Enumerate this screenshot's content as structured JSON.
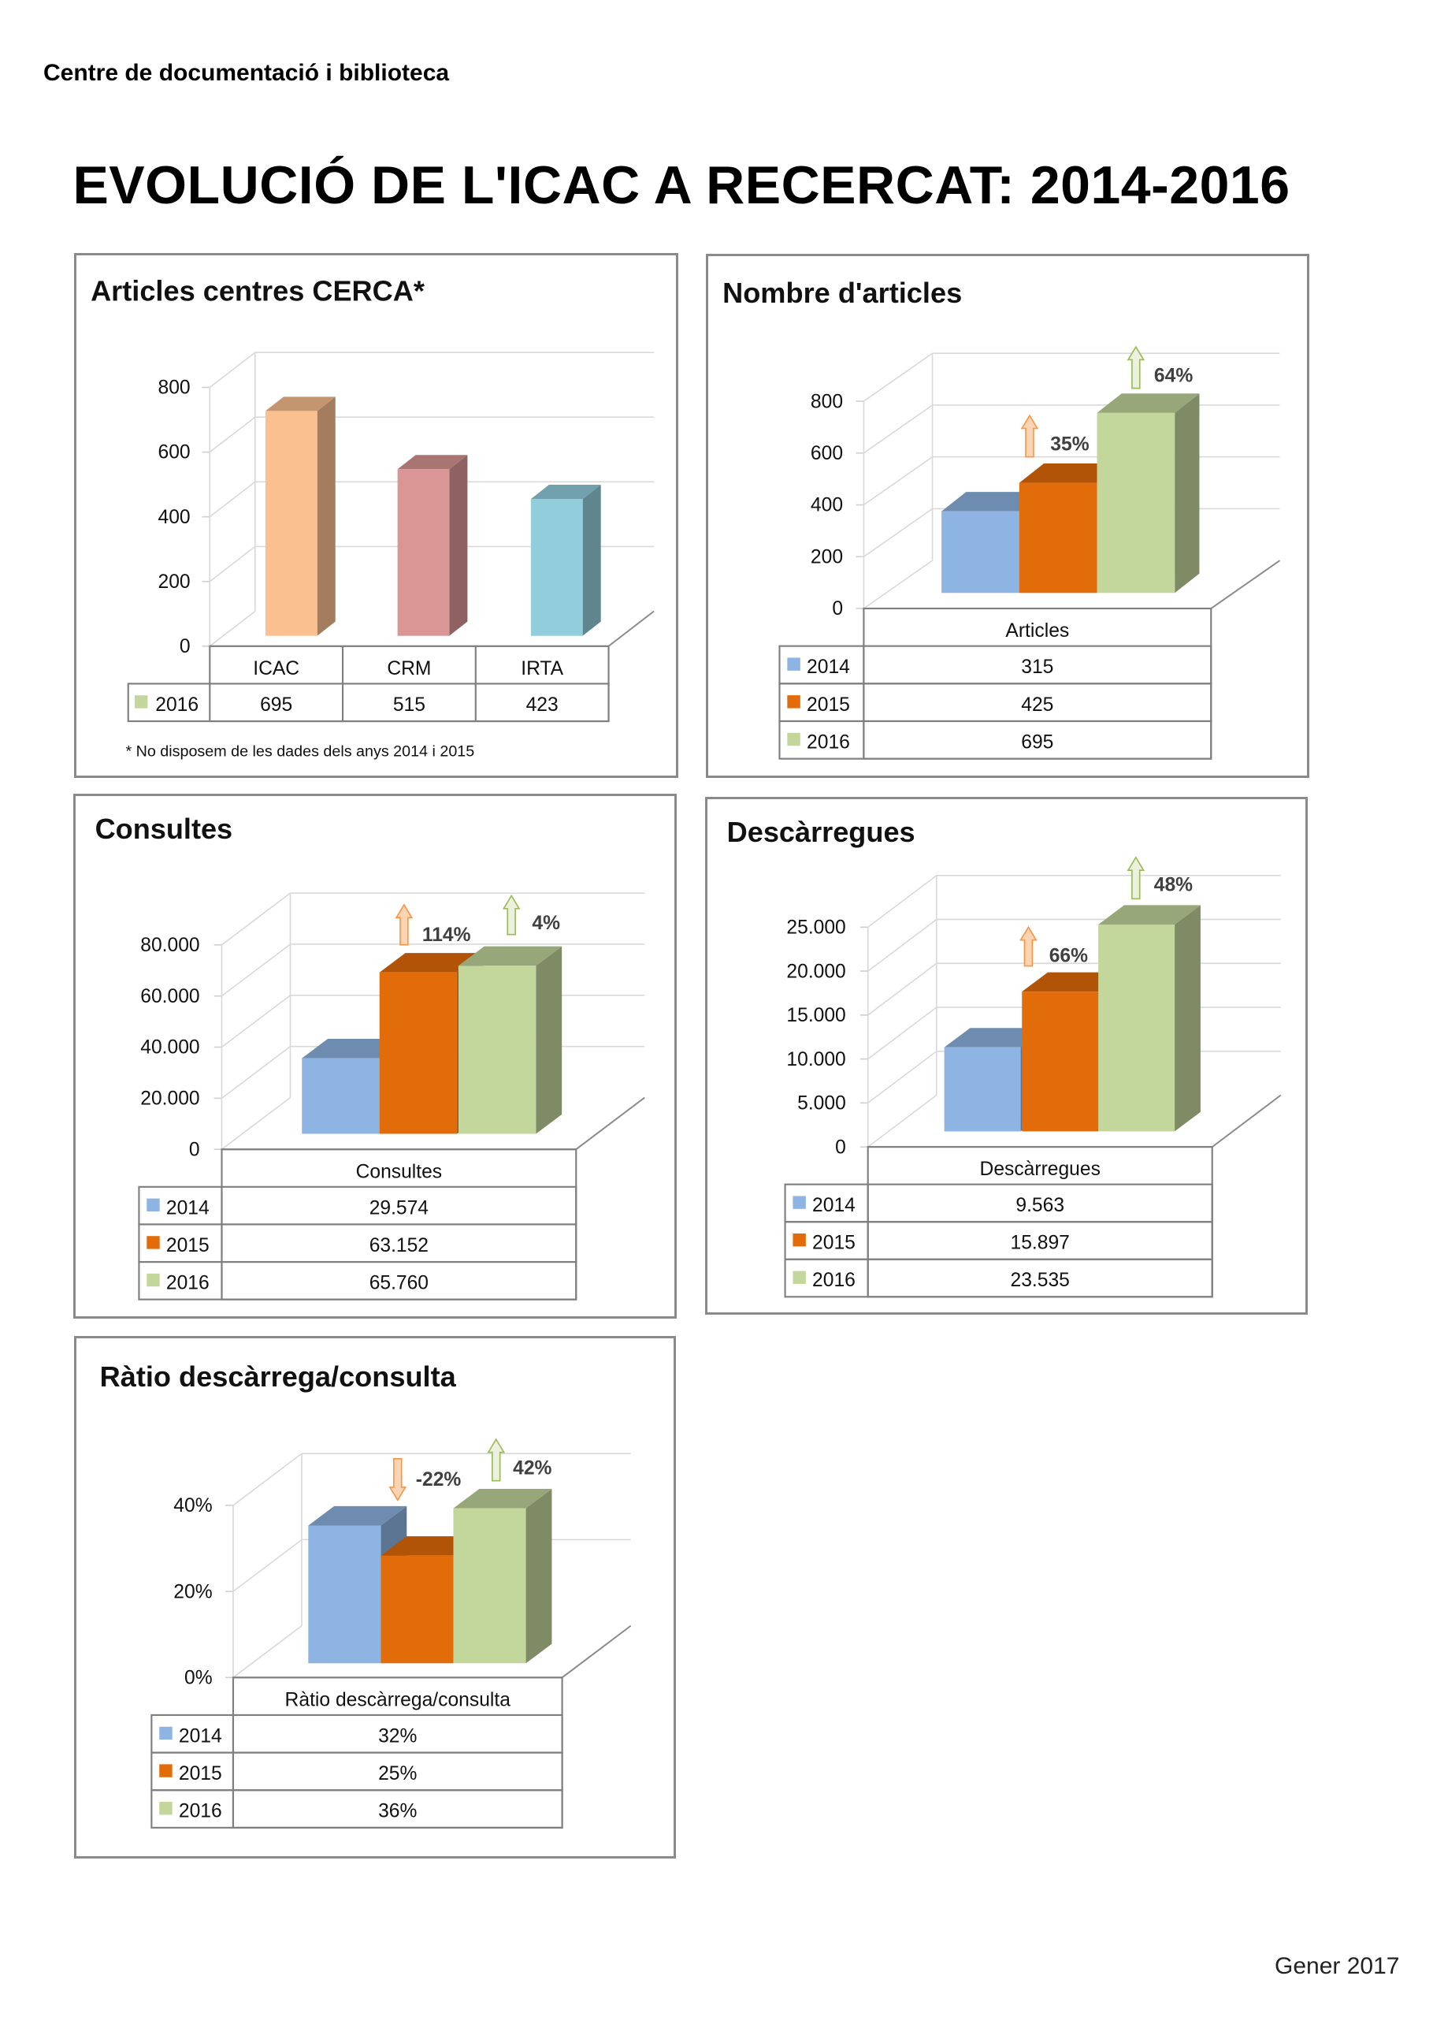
{
  "header": {
    "organization": "Centre de documentació i biblioteca",
    "title": "EVOLUCIÓ DE L'ICAC A RECERCAT: 2014-2016",
    "footer_date": "Gener 2017"
  },
  "colors": {
    "y2014": "#8DB4E2",
    "y2015": "#E36C0A",
    "y2016": "#C3D69B",
    "icac": "#FAC090",
    "crm": "#D99694",
    "irta": "#92CDDC",
    "arrow_up_orange": "#F79646",
    "arrow_up_green": "#9BBB59"
  },
  "chart_data": [
    {
      "id": "articles-cerca",
      "type": "bar",
      "title": "Articles centres CERCA*",
      "categories": [
        "ICAC",
        "CRM",
        "IRTA"
      ],
      "series": [
        {
          "name": "2016",
          "values": [
            695,
            515,
            423
          ]
        }
      ],
      "value_labels": [
        "695",
        "515",
        "423"
      ],
      "ylim": [
        0,
        800
      ],
      "yticks": [
        "0",
        "200",
        "400",
        "600",
        "800"
      ],
      "ytick_values": [
        0,
        200,
        400,
        600,
        800
      ],
      "footnote": "*  No disposem de les dades dels anys 2014 i 2015"
    },
    {
      "id": "nombre-articles",
      "type": "bar",
      "title": "Nombre d'articles",
      "categories": [
        "Articles"
      ],
      "series": [
        {
          "name": "2014",
          "values": [
            315
          ]
        },
        {
          "name": "2015",
          "values": [
            425
          ]
        },
        {
          "name": "2016",
          "values": [
            695
          ]
        }
      ],
      "value_labels": [
        "315",
        "425",
        "695"
      ],
      "ylim": [
        0,
        800
      ],
      "yticks": [
        "0",
        "200",
        "400",
        "600",
        "800"
      ],
      "ytick_values": [
        0,
        200,
        400,
        600,
        800
      ],
      "annotations": [
        {
          "text": "35%",
          "direction": "up"
        },
        {
          "text": "64%",
          "direction": "up"
        }
      ]
    },
    {
      "id": "consultes",
      "type": "bar",
      "title": "Consultes",
      "categories": [
        "Consultes"
      ],
      "series": [
        {
          "name": "2014",
          "values": [
            29574
          ]
        },
        {
          "name": "2015",
          "values": [
            63152
          ]
        },
        {
          "name": "2016",
          "values": [
            65760
          ]
        }
      ],
      "value_labels": [
        "29.574",
        "63.152",
        "65.760"
      ],
      "ylim": [
        0,
        80000
      ],
      "yticks": [
        "0",
        "20.000",
        "40.000",
        "60.000",
        "80.000"
      ],
      "ytick_values": [
        0,
        20000,
        40000,
        60000,
        80000
      ],
      "annotations": [
        {
          "text": "114%",
          "direction": "up"
        },
        {
          "text": "4%",
          "direction": "up"
        }
      ]
    },
    {
      "id": "descarregues",
      "type": "bar",
      "title": "Descàrregues",
      "categories": [
        "Descàrregues"
      ],
      "series": [
        {
          "name": "2014",
          "values": [
            9563
          ]
        },
        {
          "name": "2015",
          "values": [
            15897
          ]
        },
        {
          "name": "2016",
          "values": [
            23535
          ]
        }
      ],
      "value_labels": [
        "9.563",
        "15.897",
        "23.535"
      ],
      "ylim": [
        0,
        25000
      ],
      "yticks": [
        "0",
        "5.000",
        "10.000",
        "15.000",
        "20.000",
        "25.000"
      ],
      "ytick_values": [
        0,
        5000,
        10000,
        15000,
        20000,
        25000
      ],
      "annotations": [
        {
          "text": "66%",
          "direction": "up"
        },
        {
          "text": "48%",
          "direction": "up"
        }
      ]
    },
    {
      "id": "ratio",
      "type": "bar",
      "title": "Ràtio descàrrega/consulta",
      "categories": [
        "Ràtio descàrrega/consulta"
      ],
      "series": [
        {
          "name": "2014",
          "values": [
            0.32
          ]
        },
        {
          "name": "2015",
          "values": [
            0.25
          ]
        },
        {
          "name": "2016",
          "values": [
            0.36
          ]
        }
      ],
      "value_labels": [
        "32%",
        "25%",
        "36%"
      ],
      "ylim": [
        0,
        0.4
      ],
      "yticks": [
        "0%",
        "20%",
        "40%"
      ],
      "ytick_values": [
        0,
        0.2,
        0.4
      ],
      "annotations": [
        {
          "text": "-22%",
          "direction": "down"
        },
        {
          "text": "42%",
          "direction": "up"
        }
      ]
    }
  ]
}
